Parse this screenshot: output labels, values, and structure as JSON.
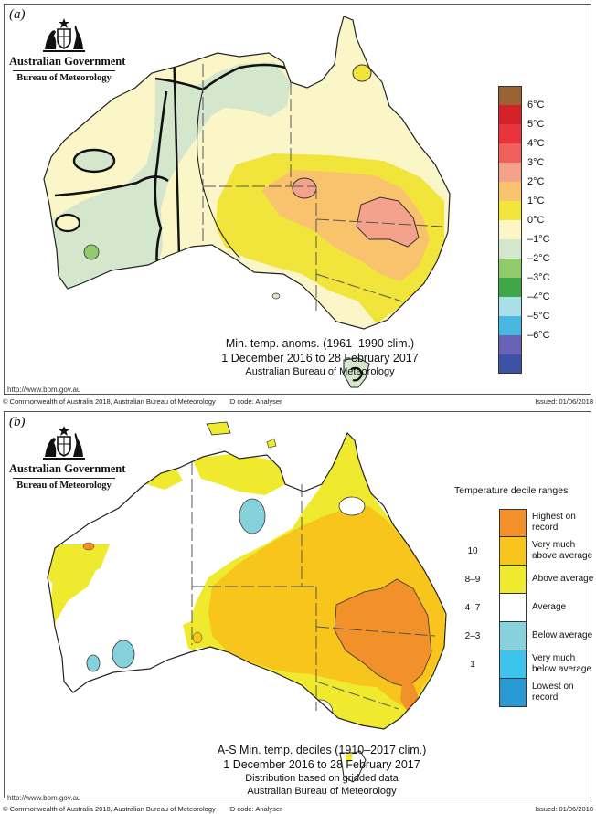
{
  "panel_a": {
    "label": "(a)",
    "logo": {
      "government": "Australian Government",
      "bureau": "Bureau of Meteorology"
    },
    "caption": {
      "line1": "Min. temp. anoms. (1961–1990 clim.)",
      "line2": "1 December 2016 to 28 February 2017",
      "line3": "Australian Bureau of Meteorology"
    },
    "url": "http://www.bom.gov.au",
    "footer": {
      "copyright": "© Commonwealth of Australia 2018, Australian Bureau of Meteorology",
      "id_code": "ID code: Analyser",
      "issued": "Issued: 01/06/2018"
    },
    "legend": [
      {
        "label": "",
        "color": "#9a6331"
      },
      {
        "label": "6°C",
        "color": "#d4222a"
      },
      {
        "label": "5°C",
        "color": "#e8343a"
      },
      {
        "label": "4°C",
        "color": "#f0605a"
      },
      {
        "label": "3°C",
        "color": "#f4a28c"
      },
      {
        "label": "2°C",
        "color": "#f8c36c"
      },
      {
        "label": "1°C",
        "color": "#f1e43a"
      },
      {
        "label": "0°C",
        "color": "#fbf6c8"
      },
      {
        "label": "–1°C",
        "color": "#d4e7cc"
      },
      {
        "label": "–2°C",
        "color": "#8fcb6a"
      },
      {
        "label": "–3°C",
        "color": "#3fa846"
      },
      {
        "label": "–4°C",
        "color": "#a8dfe8"
      },
      {
        "label": "–5°C",
        "color": "#48b8e0"
      },
      {
        "label": "–6°C",
        "color": "#6a62b4"
      },
      {
        "label": "",
        "color": "#3c52a6"
      }
    ]
  },
  "panel_b": {
    "label": "(b)",
    "logo": {
      "government": "Australian Government",
      "bureau": "Bureau of Meteorology"
    },
    "caption": {
      "line1": "A-S Min. temp. deciles (1910–2017 clim.)",
      "line2": "1 December 2016 to 28 February 2017",
      "line3": "Distribution based on gridded data",
      "line4": "Australian Bureau of Meteorology"
    },
    "url": "http://www.bom.gov.au",
    "footer": {
      "copyright": "© Commonwealth of Australia 2018, Australian Bureau of Meteorology",
      "id_code": "ID code: Analyser",
      "issued": "Issued: 01/06/2018"
    },
    "legend_title": "Temperature decile ranges",
    "legend": [
      {
        "range": "",
        "desc1": "Highest on",
        "desc2": "record",
        "color": "#f2912a"
      },
      {
        "range": "10",
        "desc1": "Very much",
        "desc2": "above average",
        "color": "#f7c51c"
      },
      {
        "range": "8–9",
        "desc1": "Above average",
        "desc2": "",
        "color": "#f0ea2e"
      },
      {
        "range": "4–7",
        "desc1": "Average",
        "desc2": "",
        "color": "#ffffff"
      },
      {
        "range": "2–3",
        "desc1": "Below average",
        "desc2": "",
        "color": "#86d2dc"
      },
      {
        "range": "1",
        "desc1": "Very much",
        "desc2": "below average",
        "color": "#3dc4ec"
      },
      {
        "range": "",
        "desc1": "Lowest on",
        "desc2": "record",
        "color": "#2a9ad4"
      }
    ]
  }
}
